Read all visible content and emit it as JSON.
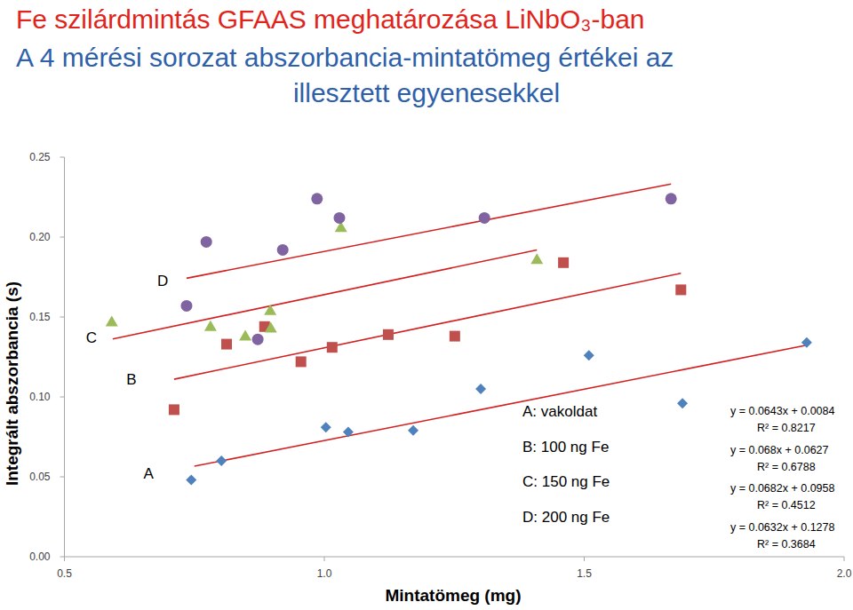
{
  "chart_data": {
    "type": "scatter",
    "title": "Fe szilárdmintás GFAAS meghatározása LiNbO₃-ban",
    "subtitle": [
      "A 4 mérési sorozat abszorbancia-mintatömeg értékei az",
      "illesztett egyenesekkel"
    ],
    "x_label": "Mintatömeg (mg)",
    "y_label": "Integrált abszorbancia (s)",
    "xlim": [
      0.5,
      2.0
    ],
    "ylim": [
      0,
      0.25
    ],
    "xticks": [
      0.5,
      {
        "value": 1,
        "label": "1.0"
      },
      1.5,
      {
        "value": 2,
        "label": "2.0"
      }
    ],
    "yticks": [
      {
        "value": 0,
        "label": "0.00"
      },
      {
        "value": 0.05,
        "label": "0.05"
      },
      {
        "value": 0.1,
        "label": "0.10"
      },
      {
        "value": 0.15,
        "label": "0.15"
      },
      {
        "value": 0.2,
        "label": "0.20"
      },
      {
        "value": 0.25,
        "label": "0.25"
      }
    ],
    "grid": false,
    "series": [
      {
        "name": "A: vakoldat",
        "color": "#4f81bd",
        "marker": "diamond",
        "x": [
          0.744,
          0.802,
          1.003,
          1.046,
          1.171,
          1.301,
          1.509,
          1.689,
          1.928
        ],
        "values": [
          0.048,
          0.06,
          0.081,
          0.078,
          0.079,
          0.105,
          0.126,
          0.096,
          0.134
        ],
        "fit": {
          "slope": 0.0643,
          "intercept": 0.0084,
          "x": [
            0.75,
            1.93
          ],
          "equation": "y = 0.0643x + 0.0084",
          "r_squared": "R² = 0.8217"
        }
      },
      {
        "name": "B: 100 ng Fe",
        "color": "#c0504d",
        "marker": "square",
        "x": [
          0.711,
          0.812,
          0.885,
          0.955,
          1.015,
          1.123,
          1.251,
          1.46,
          1.686
        ],
        "values": [
          0.092,
          0.133,
          0.144,
          0.122,
          0.131,
          0.139,
          0.138,
          0.184,
          0.167
        ],
        "fit": {
          "slope": 0.068,
          "intercept": 0.0627,
          "x": [
            0.711,
            1.686
          ],
          "equation": "y = 0.068x + 0.0627",
          "r_squared": "R² = 0.6788"
        }
      },
      {
        "name": "C: 150 ng Fe",
        "color": "#9bbb59",
        "marker": "triangle",
        "x": [
          0.591,
          0.781,
          0.848,
          0.896,
          0.897,
          1.032,
          1.409
        ],
        "values": [
          0.147,
          0.144,
          0.138,
          0.154,
          0.143,
          0.206,
          0.186
        ],
        "fit": {
          "slope": 0.0682,
          "intercept": 0.0958,
          "x": [
            0.593,
            1.409
          ],
          "equation": "y = 0.0682x + 0.0958",
          "r_squared": "R² = 0.4512"
        }
      },
      {
        "name": "D: 200 ng Fe",
        "color": "#8064a2",
        "marker": "circle",
        "x": [
          0.735,
          0.773,
          0.872,
          0.92,
          0.986,
          1.029,
          1.308,
          1.667
        ],
        "values": [
          0.157,
          0.197,
          0.136,
          0.192,
          0.224,
          0.212,
          0.212,
          0.224
        ],
        "fit": {
          "slope": 0.0632,
          "intercept": 0.1278,
          "x": [
            0.735,
            1.667
          ],
          "equation": "y = 0.0632x + 0.1278",
          "r_squared": "R² = 0.3684"
        }
      }
    ],
    "annotations": [
      {
        "text": "A",
        "x": 0.662,
        "y": 0.052
      },
      {
        "text": "B",
        "x": 0.629,
        "y": 0.111
      },
      {
        "text": "C",
        "x": 0.552,
        "y": 0.137
      },
      {
        "text": "D",
        "x": 0.689,
        "y": 0.173
      }
    ],
    "legend": "bottom-right"
  }
}
